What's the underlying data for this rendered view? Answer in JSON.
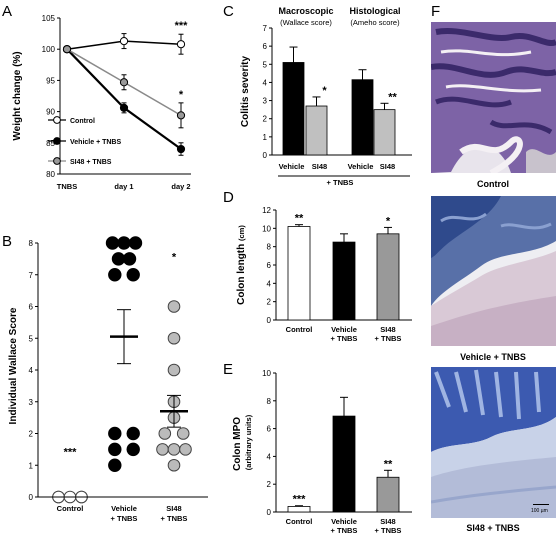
{
  "panel_letters": [
    "A",
    "B",
    "C",
    "D",
    "E",
    "F"
  ],
  "chart_data": [
    {
      "panel": "A",
      "type": "line",
      "ylabel": "Weight change (%)",
      "x_categories": [
        "TNBS",
        "day 1",
        "day 2"
      ],
      "ylim": [
        80,
        105
      ],
      "yticks": [
        80,
        85,
        90,
        95,
        100,
        105
      ],
      "series": [
        {
          "name": "Control",
          "values": [
            100,
            101.3,
            100.8
          ],
          "errors": [
            0,
            1.2,
            1.6
          ],
          "marker": "open-circle",
          "color": "#000000"
        },
        {
          "name": "Vehicle + TNBS",
          "values": [
            100,
            90.6,
            84.0
          ],
          "errors": [
            0,
            0.8,
            1.0
          ],
          "marker": "filled-circle",
          "color": "#000000"
        },
        {
          "name": "SI48 + TNBS",
          "values": [
            100,
            94.7,
            89.4
          ],
          "errors": [
            0,
            1.2,
            2.0
          ],
          "marker": "filled-circle",
          "color": "#999999"
        }
      ],
      "annotations": [
        {
          "x": "day 2",
          "text": "***",
          "above_series": "Control"
        },
        {
          "x": "day 2",
          "text": "*",
          "above_series": "SI48 + TNBS"
        }
      ],
      "legend": "bottom-left"
    },
    {
      "panel": "B",
      "type": "scatter",
      "ylabel": "Individual Wallace Score",
      "ylim": [
        0,
        8
      ],
      "yticks": [
        0,
        1,
        2,
        3,
        4,
        5,
        6,
        7,
        8
      ],
      "categories": [
        "Control",
        "Vehicle\n+ TNBS",
        "SI48\n+ TNBS"
      ],
      "groups": [
        {
          "category": "Control",
          "points": [
            0,
            0,
            0,
            0,
            0
          ],
          "offsets": [
            -0.25,
            0.25,
            -0.25,
            0,
            0.25
          ],
          "fill": "#ffffff",
          "mean": null,
          "sem": null,
          "sig": "***"
        },
        {
          "category": "Vehicle\n+ TNBS",
          "points": [
            8,
            8,
            8,
            7.5,
            7.5,
            7,
            7,
            2,
            2,
            1.5,
            1.5,
            1
          ],
          "offsets": [
            -0.25,
            0,
            0.25,
            -0.12,
            0.12,
            -0.2,
            0.2,
            -0.2,
            0.2,
            -0.2,
            0.2,
            -0.2
          ],
          "fill": "#000000",
          "mean": 5.05,
          "sem": 0.85,
          "sig": ""
        },
        {
          "category": "SI48\n+ TNBS",
          "points": [
            6,
            5,
            4,
            3,
            2.5,
            2,
            2,
            1.5,
            1.5,
            1.5,
            1
          ],
          "offsets": [
            0,
            0,
            0,
            0,
            0,
            -0.2,
            0.2,
            -0.25,
            0,
            0.25,
            0
          ],
          "fill": "#bbbbbb",
          "mean": 2.7,
          "sem": 0.5,
          "sig": "*"
        }
      ]
    },
    {
      "panel": "C",
      "type": "bar",
      "ylabel": "Colitis  severity",
      "ylim": [
        0,
        7
      ],
      "yticks": [
        0,
        1,
        2,
        3,
        4,
        5,
        6,
        7
      ],
      "group_titles": [
        "Macroscopic",
        "Histological"
      ],
      "group_subtitles": [
        "(Wallace score)",
        "(Ameho score)"
      ],
      "bar_labels": [
        "Vehicle",
        "SI48",
        "Vehicle",
        "SI48"
      ],
      "bottom_label": "+ TNBS",
      "values": [
        5.1,
        2.7,
        4.15,
        2.5
      ],
      "errors": [
        0.85,
        0.5,
        0.55,
        0.35
      ],
      "colors": [
        "#000000",
        "#c0c0c0",
        "#000000",
        "#c0c0c0"
      ],
      "sig": [
        "",
        "*",
        "",
        "**"
      ]
    },
    {
      "panel": "D",
      "type": "bar",
      "ylabel": "Colon length",
      "yunit": "(cm)",
      "ylim": [
        0,
        12
      ],
      "yticks": [
        0,
        2,
        4,
        6,
        8,
        10,
        12
      ],
      "categories": [
        "Control",
        "Vehicle\n+ TNBS",
        "SI48\n+ TNBS"
      ],
      "values": [
        10.2,
        8.5,
        9.4
      ],
      "errors": [
        0.2,
        0.9,
        0.7
      ],
      "colors": [
        "#ffffff",
        "#000000",
        "#999999"
      ],
      "sig": [
        "**",
        "",
        "*"
      ]
    },
    {
      "panel": "E",
      "type": "bar",
      "ylabel": "Colon MPO",
      "yunit": "(arbitrary units)",
      "ylim": [
        0,
        10
      ],
      "yticks": [
        0,
        2,
        4,
        6,
        8,
        10
      ],
      "categories": [
        "Control",
        "Vehicle\n+ TNBS",
        "SI48\n+ TNBS"
      ],
      "values": [
        0.4,
        6.9,
        2.5
      ],
      "errors": [
        0.05,
        1.35,
        0.5
      ],
      "colors": [
        "#ffffff",
        "#000000",
        "#999999"
      ],
      "sig": [
        "***",
        "",
        "**"
      ]
    }
  ],
  "micrographs": [
    {
      "caption": "Control"
    },
    {
      "caption": "Vehicle + TNBS"
    },
    {
      "caption": "SI48 + TNBS"
    }
  ],
  "scale_bar_label": "100 µm"
}
